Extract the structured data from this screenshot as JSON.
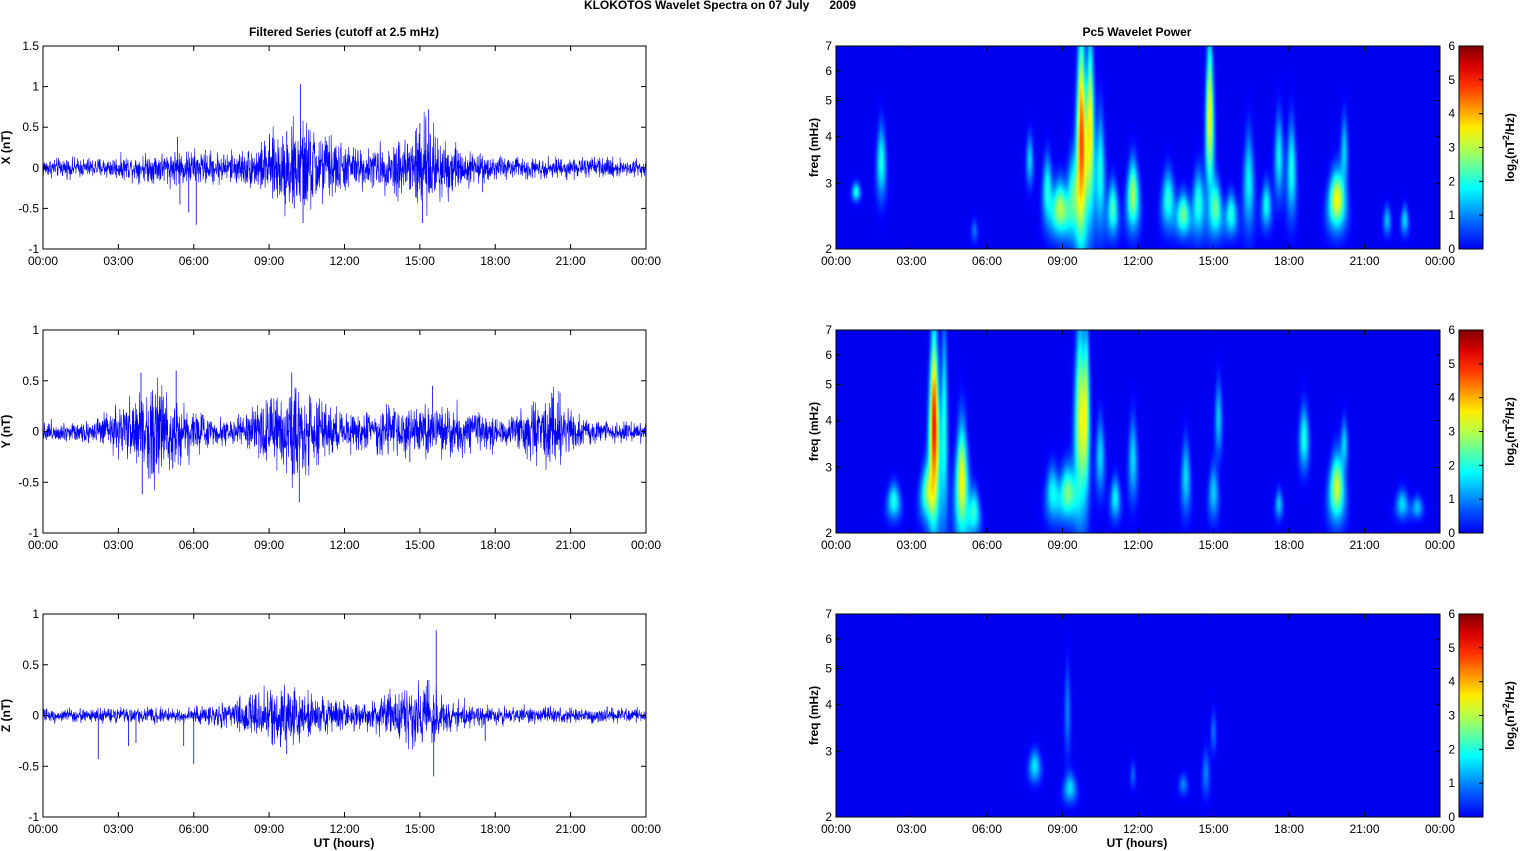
{
  "figure": {
    "suptitle": "KLOKOTOS Wavelet Spectra on 07 July      2009",
    "left_title": "Filtered Series (cutoff at 2.5 mHz)",
    "right_title": "Pc5 Wavelet Power",
    "xlabel": "UT (hours)"
  },
  "chart_data": [
    {
      "type": "line",
      "component": "X",
      "ylabel": "X (nT)",
      "xlim": [
        0,
        24
      ],
      "ylim": [
        -1,
        1.5
      ],
      "xticks": [
        "00:00",
        "03:00",
        "06:00",
        "09:00",
        "12:00",
        "15:00",
        "18:00",
        "21:00",
        "00:00"
      ],
      "yticks": [
        "1.5",
        "1",
        "0.5",
        "0",
        "-0.5",
        "-1"
      ],
      "grid": false,
      "color": "#0000ff",
      "noise_floor": 0.07,
      "activity": [
        {
          "center": 10.2,
          "width": 1.5,
          "amp": 0.22
        },
        {
          "center": 15.2,
          "width": 1.2,
          "amp": 0.22
        },
        {
          "center": 12.5,
          "width": 5.0,
          "amp": 0.06
        },
        {
          "center": 5.5,
          "width": 2.0,
          "amp": 0.05
        }
      ],
      "spikes": [
        {
          "x": 5.35,
          "y": 0.38
        },
        {
          "x": 5.45,
          "y": -0.45
        },
        {
          "x": 6.1,
          "y": -0.7
        },
        {
          "x": 10.25,
          "y": 1.03
        },
        {
          "x": 10.35,
          "y": -0.68
        },
        {
          "x": 9.7,
          "y": 0.45
        },
        {
          "x": 15.35,
          "y": 0.72
        },
        {
          "x": 15.1,
          "y": -0.68
        },
        {
          "x": 15.0,
          "y": 0.55
        },
        {
          "x": 10.0,
          "y": -0.5
        },
        {
          "x": 5.8,
          "y": -0.55
        },
        {
          "x": 17.5,
          "y": -0.3
        }
      ]
    },
    {
      "type": "line",
      "component": "Y",
      "ylabel": "Y (nT)",
      "xlim": [
        0,
        24
      ],
      "ylim": [
        -1,
        1
      ],
      "xticks": [
        "00:00",
        "03:00",
        "06:00",
        "09:00",
        "12:00",
        "15:00",
        "18:00",
        "21:00",
        "00:00"
      ],
      "yticks": [
        "1",
        "0.5",
        "0",
        "-0.5",
        "-1"
      ],
      "grid": false,
      "color": "#0000ff",
      "noise_floor": 0.06,
      "activity": [
        {
          "center": 4.5,
          "width": 1.5,
          "amp": 0.22
        },
        {
          "center": 10.0,
          "width": 1.5,
          "amp": 0.2
        },
        {
          "center": 20.2,
          "width": 1.0,
          "amp": 0.16
        },
        {
          "center": 15.0,
          "width": 3.0,
          "amp": 0.1
        }
      ],
      "spikes": [
        {
          "x": 3.9,
          "y": 0.58
        },
        {
          "x": 3.95,
          "y": -0.62
        },
        {
          "x": 5.3,
          "y": 0.6
        },
        {
          "x": 4.4,
          "y": -0.4
        },
        {
          "x": 10.2,
          "y": -0.7
        },
        {
          "x": 9.9,
          "y": 0.58
        },
        {
          "x": 15.5,
          "y": 0.45
        },
        {
          "x": 20.25,
          "y": 0.38
        },
        {
          "x": 14.6,
          "y": -0.3
        }
      ]
    },
    {
      "type": "line",
      "component": "Z",
      "ylabel": "Z (nT)",
      "xlim": [
        0,
        24
      ],
      "ylim": [
        -1,
        1
      ],
      "xticks": [
        "00:00",
        "03:00",
        "06:00",
        "09:00",
        "12:00",
        "15:00",
        "18:00",
        "21:00",
        "00:00"
      ],
      "yticks": [
        "1",
        "0.5",
        "0",
        "-0.5",
        "-1"
      ],
      "grid": false,
      "color": "#0000ff",
      "noise_floor": 0.04,
      "activity": [
        {
          "center": 9.5,
          "width": 2.0,
          "amp": 0.1
        },
        {
          "center": 15.0,
          "width": 1.5,
          "amp": 0.11
        },
        {
          "center": 13.0,
          "width": 6.0,
          "amp": 0.03
        }
      ],
      "spikes": [
        {
          "x": 2.2,
          "y": -0.43
        },
        {
          "x": 3.4,
          "y": -0.3
        },
        {
          "x": 3.7,
          "y": -0.27
        },
        {
          "x": 6.0,
          "y": -0.48
        },
        {
          "x": 5.6,
          "y": -0.3
        },
        {
          "x": 15.65,
          "y": 0.84
        },
        {
          "x": 15.55,
          "y": -0.6
        },
        {
          "x": 15.3,
          "y": 0.35
        },
        {
          "x": 9.7,
          "y": -0.38
        },
        {
          "x": 17.6,
          "y": -0.25
        }
      ]
    },
    {
      "type": "heatmap",
      "component": "X",
      "ylabel": "freq (mHz)",
      "xlim": [
        0,
        24
      ],
      "ylim": [
        2,
        7
      ],
      "yscale": "log",
      "xticks": [
        "00:00",
        "03:00",
        "06:00",
        "09:00",
        "12:00",
        "15:00",
        "18:00",
        "21:00",
        "00:00"
      ],
      "yticks": [
        "2",
        "3",
        "4",
        "5",
        "6",
        "7"
      ],
      "colormap": "jet",
      "colorbar_label": "log2(nT^2/Hz)",
      "clim": [
        0,
        6
      ],
      "colorbar_ticks": [
        "0",
        "1",
        "2",
        "3",
        "4",
        "5",
        "6"
      ],
      "blobs": [
        {
          "t": 0.8,
          "f0": 2.7,
          "f1": 3.0,
          "w": 0.15,
          "v": 2.0
        },
        {
          "t": 1.8,
          "f0": 2.8,
          "f1": 4.2,
          "w": 0.15,
          "v": 2.0
        },
        {
          "t": 5.5,
          "f0": 2.1,
          "f1": 2.4,
          "w": 0.1,
          "v": 0.9
        },
        {
          "t": 7.7,
          "f0": 3.0,
          "f1": 4.0,
          "w": 0.12,
          "v": 1.6
        },
        {
          "t": 8.4,
          "f0": 2.4,
          "f1": 3.5,
          "w": 0.15,
          "v": 2.0
        },
        {
          "t": 8.9,
          "f0": 2.2,
          "f1": 3.0,
          "w": 0.25,
          "v": 3.0
        },
        {
          "t": 9.4,
          "f0": 2.2,
          "f1": 3.5,
          "w": 0.18,
          "v": 2.0
        },
        {
          "t": 9.75,
          "f0": 2.2,
          "f1": 7.0,
          "w": 0.14,
          "v": 4.8
        },
        {
          "t": 10.1,
          "f0": 2.6,
          "f1": 7.0,
          "w": 0.12,
          "v": 3.6
        },
        {
          "t": 10.5,
          "f0": 2.3,
          "f1": 4.5,
          "w": 0.14,
          "v": 2.0
        },
        {
          "t": 11.0,
          "f0": 2.2,
          "f1": 3.0,
          "w": 0.16,
          "v": 2.3
        },
        {
          "t": 11.8,
          "f0": 2.3,
          "f1": 3.4,
          "w": 0.18,
          "v": 3.0
        },
        {
          "t": 13.2,
          "f0": 2.3,
          "f1": 3.2,
          "w": 0.2,
          "v": 2.1
        },
        {
          "t": 13.8,
          "f0": 2.2,
          "f1": 2.8,
          "w": 0.2,
          "v": 2.6
        },
        {
          "t": 14.4,
          "f0": 2.2,
          "f1": 3.2,
          "w": 0.18,
          "v": 2.1
        },
        {
          "t": 14.85,
          "f0": 3.0,
          "f1": 7.0,
          "w": 0.12,
          "v": 3.6
        },
        {
          "t": 15.1,
          "f0": 2.2,
          "f1": 3.0,
          "w": 0.18,
          "v": 2.4
        },
        {
          "t": 15.7,
          "f0": 2.2,
          "f1": 2.8,
          "w": 0.18,
          "v": 2.1
        },
        {
          "t": 16.4,
          "f0": 2.3,
          "f1": 4.0,
          "w": 0.16,
          "v": 1.8
        },
        {
          "t": 17.1,
          "f0": 2.3,
          "f1": 3.0,
          "w": 0.15,
          "v": 1.9
        },
        {
          "t": 17.6,
          "f0": 2.8,
          "f1": 4.5,
          "w": 0.14,
          "v": 1.8
        },
        {
          "t": 18.1,
          "f0": 2.5,
          "f1": 4.3,
          "w": 0.14,
          "v": 2.0
        },
        {
          "t": 19.9,
          "f0": 2.3,
          "f1": 3.2,
          "w": 0.25,
          "v": 3.5
        },
        {
          "t": 20.2,
          "f0": 3.0,
          "f1": 4.5,
          "w": 0.12,
          "v": 1.5
        },
        {
          "t": 21.9,
          "f0": 2.2,
          "f1": 2.6,
          "w": 0.12,
          "v": 1.4
        },
        {
          "t": 22.6,
          "f0": 2.2,
          "f1": 2.6,
          "w": 0.12,
          "v": 1.6
        }
      ]
    },
    {
      "type": "heatmap",
      "component": "Y",
      "ylabel": "freq (mHz)",
      "xlim": [
        0,
        24
      ],
      "ylim": [
        2,
        7
      ],
      "yscale": "log",
      "xticks": [
        "00:00",
        "03:00",
        "06:00",
        "09:00",
        "12:00",
        "15:00",
        "18:00",
        "21:00",
        "00:00"
      ],
      "yticks": [
        "2",
        "3",
        "4",
        "5",
        "6",
        "7"
      ],
      "colormap": "jet",
      "colorbar_label": "log2(nT^2/Hz)",
      "clim": [
        0,
        6
      ],
      "colorbar_ticks": [
        "0",
        "1",
        "2",
        "3",
        "4",
        "5",
        "6"
      ],
      "blobs": [
        {
          "t": 2.3,
          "f0": 2.2,
          "f1": 2.7,
          "w": 0.2,
          "v": 2.0
        },
        {
          "t": 3.6,
          "f0": 2.2,
          "f1": 3.0,
          "w": 0.2,
          "v": 2.2
        },
        {
          "t": 3.9,
          "f0": 2.3,
          "f1": 6.5,
          "w": 0.14,
          "v": 5.2
        },
        {
          "t": 4.3,
          "f0": 2.2,
          "f1": 7.0,
          "w": 0.1,
          "v": 2.0
        },
        {
          "t": 5.0,
          "f0": 2.0,
          "f1": 3.8,
          "w": 0.18,
          "v": 3.5
        },
        {
          "t": 5.5,
          "f0": 2.0,
          "f1": 2.6,
          "w": 0.16,
          "v": 2.0
        },
        {
          "t": 8.6,
          "f0": 2.2,
          "f1": 3.0,
          "w": 0.2,
          "v": 1.8
        },
        {
          "t": 9.2,
          "f0": 2.2,
          "f1": 3.0,
          "w": 0.25,
          "v": 2.6
        },
        {
          "t": 9.7,
          "f0": 2.4,
          "f1": 7.0,
          "w": 0.16,
          "v": 3.2
        },
        {
          "t": 9.95,
          "f0": 2.8,
          "f1": 7.0,
          "w": 0.1,
          "v": 2.6
        },
        {
          "t": 10.5,
          "f0": 2.6,
          "f1": 4.0,
          "w": 0.14,
          "v": 1.6
        },
        {
          "t": 11.1,
          "f0": 2.2,
          "f1": 2.8,
          "w": 0.15,
          "v": 1.8
        },
        {
          "t": 11.8,
          "f0": 2.5,
          "f1": 4.0,
          "w": 0.14,
          "v": 1.6
        },
        {
          "t": 13.9,
          "f0": 2.3,
          "f1": 3.5,
          "w": 0.14,
          "v": 1.6
        },
        {
          "t": 15.0,
          "f0": 2.2,
          "f1": 3.0,
          "w": 0.15,
          "v": 1.5
        },
        {
          "t": 15.2,
          "f0": 3.3,
          "f1": 5.0,
          "w": 0.12,
          "v": 1.5
        },
        {
          "t": 17.6,
          "f0": 2.2,
          "f1": 2.6,
          "w": 0.12,
          "v": 1.5
        },
        {
          "t": 18.6,
          "f0": 3.0,
          "f1": 4.3,
          "w": 0.16,
          "v": 2.0
        },
        {
          "t": 19.9,
          "f0": 2.2,
          "f1": 3.2,
          "w": 0.22,
          "v": 3.2
        },
        {
          "t": 20.2,
          "f0": 3.0,
          "f1": 4.0,
          "w": 0.12,
          "v": 1.5
        },
        {
          "t": 22.5,
          "f0": 2.2,
          "f1": 2.6,
          "w": 0.2,
          "v": 1.6
        },
        {
          "t": 23.1,
          "f0": 2.2,
          "f1": 2.5,
          "w": 0.18,
          "v": 1.4
        }
      ]
    },
    {
      "type": "heatmap",
      "component": "Z",
      "ylabel": "freq (mHz)",
      "xlim": [
        0,
        24
      ],
      "ylim": [
        2,
        7
      ],
      "yscale": "log",
      "xticks": [
        "00:00",
        "03:00",
        "06:00",
        "09:00",
        "12:00",
        "15:00",
        "18:00",
        "21:00",
        "00:00"
      ],
      "yticks": [
        "2",
        "3",
        "4",
        "5",
        "6",
        "7"
      ],
      "colormap": "jet",
      "colorbar_label": "log2(nT^2/Hz)",
      "clim": [
        0,
        6
      ],
      "colorbar_ticks": [
        "0",
        "1",
        "2",
        "3",
        "4",
        "5",
        "6"
      ],
      "blobs": [
        {
          "t": 7.9,
          "f0": 2.5,
          "f1": 3.0,
          "w": 0.2,
          "v": 1.7
        },
        {
          "t": 9.3,
          "f0": 2.2,
          "f1": 2.6,
          "w": 0.2,
          "v": 1.6
        },
        {
          "t": 9.2,
          "f0": 3.0,
          "f1": 5.0,
          "w": 0.1,
          "v": 1.0
        },
        {
          "t": 11.8,
          "f0": 2.4,
          "f1": 2.8,
          "w": 0.1,
          "v": 0.8
        },
        {
          "t": 13.8,
          "f0": 2.3,
          "f1": 2.6,
          "w": 0.15,
          "v": 1.0
        },
        {
          "t": 14.7,
          "f0": 2.3,
          "f1": 3.0,
          "w": 0.12,
          "v": 1.0
        },
        {
          "t": 15.0,
          "f0": 3.0,
          "f1": 3.8,
          "w": 0.1,
          "v": 0.9
        }
      ]
    }
  ]
}
